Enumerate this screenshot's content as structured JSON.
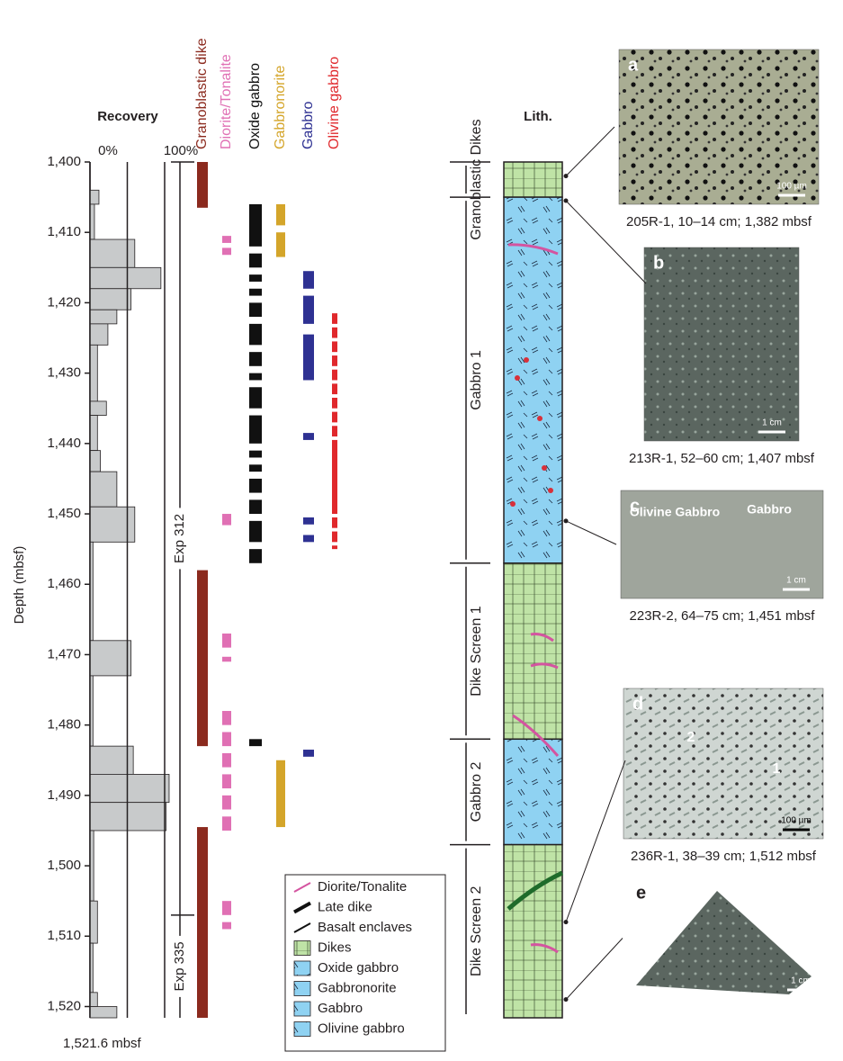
{
  "chart_data": {
    "type": "well-log",
    "y_axis_label": "Depth (mbsf)",
    "bottom_label": "1,521.6 mbsf",
    "ylim": [
      1400,
      1521.6
    ],
    "yticks": [
      {
        "value": 1400,
        "label": "1,400"
      },
      {
        "value": 1410,
        "label": "1,410"
      },
      {
        "value": 1420,
        "label": "1,420"
      },
      {
        "value": 1430,
        "label": "1,430"
      },
      {
        "value": 1440,
        "label": "1,440"
      },
      {
        "value": 1450,
        "label": "1,450"
      },
      {
        "value": 1460,
        "label": "1,460"
      },
      {
        "value": 1470,
        "label": "1,470"
      },
      {
        "value": 1480,
        "label": "1,480"
      },
      {
        "value": 1490,
        "label": "1,490"
      },
      {
        "value": 1500,
        "label": "1,500"
      },
      {
        "value": 1510,
        "label": "1,510"
      },
      {
        "value": 1520,
        "label": "1,520"
      }
    ],
    "recovery": {
      "title": "Recovery",
      "color": "#c8cacb",
      "xlim": [
        0,
        100
      ],
      "xticks": [
        {
          "value": 0,
          "label": "0%"
        },
        {
          "value": 50,
          "label": null
        },
        {
          "value": 100,
          "label": "100%"
        }
      ],
      "bins": [
        1400,
        1404,
        1406,
        1411,
        1415,
        1418,
        1421,
        1423,
        1426,
        1434,
        1436,
        1441,
        1444,
        1449,
        1454,
        1468,
        1473,
        1483,
        1487,
        1491,
        1495,
        1505,
        1511,
        1518,
        1520,
        1521.6
      ],
      "values": [
        0,
        12,
        6,
        60,
        95,
        55,
        36,
        24,
        10,
        22,
        10,
        14,
        36,
        60,
        4,
        55,
        4,
        58,
        106,
        102,
        5,
        10,
        4,
        10,
        36
      ]
    },
    "expeditions": [
      {
        "name": "Exp 312",
        "top": 1400,
        "bottom": 1507
      },
      {
        "name": "Exp 335",
        "top": 1507,
        "bottom": 1521.6
      }
    ],
    "columns": [
      {
        "name": "Granoblastic dike",
        "color": "#8b2a1e",
        "intervals": [
          [
            1400,
            1406.5
          ],
          [
            1458,
            1483
          ],
          [
            1494.5,
            1521.6
          ]
        ]
      },
      {
        "name": "Diorite/Tonalite",
        "color": "#e070b4",
        "intervals": [
          [
            1410.5,
            1411.5
          ],
          [
            1412.2,
            1413.2
          ],
          [
            1450,
            1451.6
          ],
          [
            1467,
            1469
          ],
          [
            1470.3,
            1471
          ],
          [
            1478,
            1480
          ],
          [
            1481,
            1483
          ],
          [
            1484,
            1486
          ],
          [
            1487,
            1489
          ],
          [
            1490,
            1492
          ],
          [
            1493,
            1495
          ],
          [
            1505,
            1507
          ],
          [
            1508,
            1509
          ]
        ]
      },
      {
        "name": "Oxide gabbro",
        "color": "#111111",
        "intervals": [
          [
            1406,
            1412
          ],
          [
            1413,
            1415
          ],
          [
            1416,
            1417
          ],
          [
            1418,
            1419
          ],
          [
            1420,
            1422
          ],
          [
            1423,
            1426
          ],
          [
            1427,
            1429
          ],
          [
            1430,
            1431
          ],
          [
            1432,
            1435
          ],
          [
            1436,
            1440
          ],
          [
            1441,
            1442
          ],
          [
            1443,
            1444
          ],
          [
            1445,
            1447
          ],
          [
            1448,
            1450
          ],
          [
            1451,
            1454
          ],
          [
            1455,
            1457
          ],
          [
            1482,
            1483
          ]
        ]
      },
      {
        "name": "Gabbronorite",
        "color": "#d4a52a",
        "intervals": [
          [
            1406,
            1409
          ],
          [
            1410,
            1413.5
          ],
          [
            1485,
            1494.5
          ]
        ]
      },
      {
        "name": "Gabbro",
        "color": "#2e3192",
        "intervals": [
          [
            1415.5,
            1418
          ],
          [
            1419,
            1423
          ],
          [
            1424.5,
            1431
          ],
          [
            1438.5,
            1439.5
          ],
          [
            1450.5,
            1451.5
          ],
          [
            1453,
            1454
          ],
          [
            1483.5,
            1484.5
          ]
        ]
      },
      {
        "name": "Olivine gabbro",
        "color": "#e0282c",
        "intervals": [
          [
            1421.5,
            1423
          ],
          [
            1423.5,
            1425
          ],
          [
            1425.5,
            1427
          ],
          [
            1427.5,
            1429
          ],
          [
            1429.5,
            1431
          ],
          [
            1431.5,
            1433
          ],
          [
            1433.5,
            1435
          ],
          [
            1435.5,
            1437
          ],
          [
            1437.5,
            1439
          ],
          [
            1439.5,
            1450
          ],
          [
            1450.5,
            1452
          ],
          [
            1452.5,
            1454
          ],
          [
            1454.5,
            1455
          ]
        ]
      }
    ],
    "lithology": {
      "title": "Lith.",
      "units": [
        {
          "name": "Granoblastic Dikes",
          "kind": "dike",
          "top": 1400,
          "bottom": 1405
        },
        {
          "name": "Gabbro 1",
          "kind": "gabbro",
          "top": 1405,
          "bottom": 1457
        },
        {
          "name": "Dike Screen 1",
          "kind": "dike",
          "top": 1457,
          "bottom": 1482
        },
        {
          "name": "Gabbro 2",
          "kind": "gabbro",
          "top": 1482,
          "bottom": 1497
        },
        {
          "name": "Dike Screen 2",
          "kind": "dike",
          "top": 1497,
          "bottom": 1521.6
        }
      ]
    },
    "legend": [
      "Diorite/Tonalite",
      "Late dike",
      "Basalt enclaves",
      "Dikes",
      "Oxide gabbro",
      "Gabbronorite",
      "Gabbro",
      "Olivine gabbro"
    ],
    "photos": [
      {
        "letter": "a",
        "caption": "205R-1, 10–14 cm; 1,382 mbsf",
        "scale": "100 µm",
        "labels": []
      },
      {
        "letter": "b",
        "caption": "213R-1, 52–60 cm; 1,407 mbsf",
        "scale": "1 cm",
        "labels": []
      },
      {
        "letter": "c",
        "caption": "223R-2, 64–75 cm; 1,451 mbsf",
        "scale": "1 cm",
        "labels": [
          "Olivine Gabbro",
          "Gabbro"
        ]
      },
      {
        "letter": "d",
        "caption": "236R-1, 38–39 cm; 1,512 mbsf",
        "scale": "100 µm",
        "labels": [
          "2",
          "1"
        ]
      },
      {
        "letter": "e",
        "caption": "",
        "scale": "1 cm",
        "labels": []
      }
    ]
  }
}
